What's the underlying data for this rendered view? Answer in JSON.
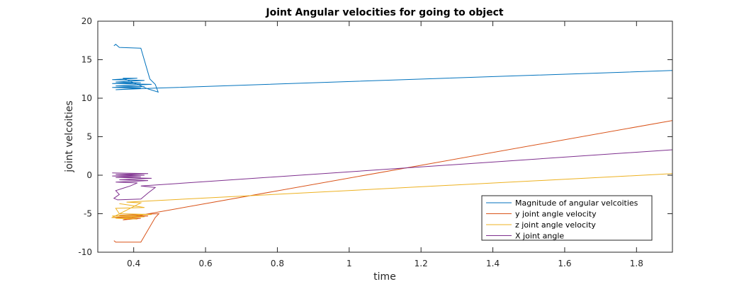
{
  "chart_data": {
    "type": "line",
    "title": "Joint Angular velocities for going to object",
    "xlabel": "time",
    "ylabel": "joint velcoities",
    "xlim": [
      0.3,
      1.9
    ],
    "ylim": [
      -10,
      20
    ],
    "xticks": [
      0.4,
      0.6,
      0.8,
      1,
      1.2,
      1.4,
      1.6,
      1.8
    ],
    "yticks": [
      -10,
      -5,
      0,
      5,
      10,
      15,
      20
    ],
    "grid": false,
    "legend_position": "bottom-right",
    "series": [
      {
        "name": "Magnitude of angular velcoities",
        "color": "#0072BD",
        "points": [
          [
            0.345,
            16.8
          ],
          [
            0.35,
            17.0
          ],
          [
            0.36,
            16.6
          ],
          [
            0.42,
            16.5
          ],
          [
            0.445,
            12.5
          ],
          [
            0.46,
            11.8
          ],
          [
            0.468,
            10.8
          ],
          [
            0.44,
            11.2
          ],
          [
            0.37,
            12.6
          ],
          [
            0.41,
            12.6
          ],
          [
            0.34,
            12.4
          ],
          [
            0.43,
            12.3
          ],
          [
            0.35,
            12.1
          ],
          [
            0.42,
            12.0
          ],
          [
            0.34,
            11.9
          ],
          [
            0.45,
            11.8
          ],
          [
            0.35,
            11.6
          ],
          [
            0.43,
            11.5
          ],
          [
            0.34,
            11.4
          ],
          [
            0.42,
            11.3
          ],
          [
            0.35,
            11.1
          ],
          [
            0.46,
            11.3
          ],
          [
            1.9,
            13.6
          ]
        ]
      },
      {
        "name": "y joint angle velocity",
        "color": "#D95319",
        "points": [
          [
            0.345,
            -8.5
          ],
          [
            0.35,
            -8.7
          ],
          [
            0.42,
            -8.7
          ],
          [
            0.46,
            -5.5
          ],
          [
            0.47,
            -5.0
          ],
          [
            0.36,
            -5.2
          ],
          [
            0.44,
            -5.3
          ],
          [
            0.34,
            -5.5
          ],
          [
            0.42,
            -5.6
          ],
          [
            0.37,
            -5.8
          ],
          [
            0.43,
            -5.1
          ],
          [
            1.9,
            7.1
          ]
        ]
      },
      {
        "name": "z joint angle velocity",
        "color": "#EDB120",
        "points": [
          [
            0.36,
            -3.7
          ],
          [
            0.39,
            -3.9
          ],
          [
            0.43,
            -4.2
          ],
          [
            0.35,
            -4.3
          ],
          [
            0.36,
            -5.0
          ],
          [
            0.45,
            -5.1
          ],
          [
            0.34,
            -5.3
          ],
          [
            0.43,
            -5.4
          ],
          [
            0.35,
            -5.6
          ],
          [
            0.41,
            -5.7
          ],
          [
            0.34,
            -5.5
          ],
          [
            0.42,
            -3.6
          ],
          [
            0.38,
            -3.5
          ],
          [
            1.9,
            0.2
          ]
        ]
      },
      {
        "name": "X joint angle",
        "color": "#7E2F8E",
        "points": [
          [
            0.34,
            0.3
          ],
          [
            0.44,
            0.2
          ],
          [
            0.35,
            0.1
          ],
          [
            0.43,
            0.0
          ],
          [
            0.34,
            -0.1
          ],
          [
            0.42,
            -0.2
          ],
          [
            0.35,
            -0.3
          ],
          [
            0.45,
            -0.4
          ],
          [
            0.36,
            -0.6
          ],
          [
            0.44,
            -0.7
          ],
          [
            0.35,
            -0.9
          ],
          [
            0.41,
            -1.0
          ],
          [
            0.39,
            -1.4
          ],
          [
            0.37,
            -1.7
          ],
          [
            0.35,
            -2.0
          ],
          [
            0.36,
            -2.5
          ],
          [
            0.345,
            -3.0
          ],
          [
            0.355,
            -3.2
          ],
          [
            0.42,
            -3.1
          ],
          [
            0.44,
            -2.3
          ],
          [
            0.46,
            -1.6
          ],
          [
            0.42,
            -1.4
          ],
          [
            1.9,
            3.3
          ]
        ]
      }
    ]
  }
}
